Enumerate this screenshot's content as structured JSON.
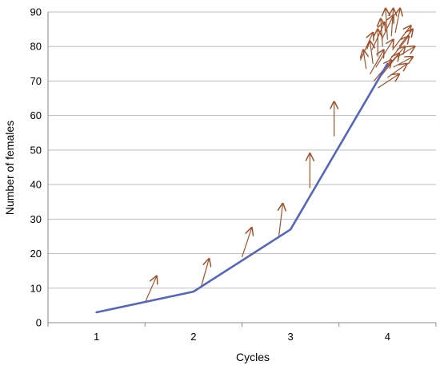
{
  "chart_data": {
    "type": "line",
    "title": "",
    "xlabel": "Cycles",
    "ylabel": "Number of females",
    "categories": [
      "1",
      "2",
      "3",
      "4"
    ],
    "xlim": [
      0.5,
      4.5
    ],
    "ylim": [
      0,
      90
    ],
    "yticks": [
      0,
      10,
      20,
      30,
      40,
      50,
      60,
      70,
      80,
      90
    ],
    "grid": "horizontal",
    "series": [
      {
        "x": [
          1,
          2,
          3,
          4
        ],
        "values": [
          3,
          9,
          27,
          75
        ],
        "color": "#5566bb"
      }
    ],
    "arrows": [
      {
        "from": [
          1.5,
          5.8
        ],
        "to": [
          1.62,
          13.5
        ]
      },
      {
        "from": [
          2.08,
          10.5
        ],
        "to": [
          2.16,
          18.5
        ]
      },
      {
        "from": [
          2.5,
          19
        ],
        "to": [
          2.6,
          27.5
        ]
      },
      {
        "from": [
          2.88,
          25
        ],
        "to": [
          2.92,
          34.5
        ]
      },
      {
        "from": [
          3.2,
          39
        ],
        "to": [
          3.2,
          49
        ]
      },
      {
        "from": [
          3.45,
          54
        ],
        "to": [
          3.45,
          64
        ]
      },
      {
        "from": [
          3.78,
          73.5
        ],
        "to": [
          3.75,
          79
        ]
      },
      {
        "from": [
          3.85,
          75
        ],
        "to": [
          3.82,
          81.5
        ]
      },
      {
        "from": [
          3.9,
          77
        ],
        "to": [
          3.9,
          85
        ]
      },
      {
        "from": [
          3.95,
          80
        ],
        "to": [
          3.93,
          88
        ]
      },
      {
        "from": [
          4.0,
          82
        ],
        "to": [
          3.98,
          91
        ]
      },
      {
        "from": [
          4.04,
          83
        ],
        "to": [
          4.06,
          91
        ]
      },
      {
        "from": [
          4.08,
          84
        ],
        "to": [
          4.13,
          91
        ]
      },
      {
        "from": [
          3.82,
          72
        ],
        "to": [
          3.96,
          79
        ]
      },
      {
        "from": [
          3.88,
          74
        ],
        "to": [
          4.06,
          82
        ]
      },
      {
        "from": [
          3.92,
          71
        ],
        "to": [
          4.12,
          78
        ]
      },
      {
        "from": [
          3.96,
          73
        ],
        "to": [
          4.18,
          80
        ]
      },
      {
        "from": [
          4.02,
          76
        ],
        "to": [
          4.22,
          83
        ]
      },
      {
        "from": [
          4.05,
          79
        ],
        "to": [
          4.24,
          86
        ]
      },
      {
        "from": [
          3.86,
          70
        ],
        "to": [
          4.04,
          76
        ]
      },
      {
        "from": [
          3.9,
          68
        ],
        "to": [
          4.12,
          72
        ]
      },
      {
        "from": [
          4.0,
          71
        ],
        "to": [
          4.2,
          75
        ]
      },
      {
        "from": [
          4.06,
          74
        ],
        "to": [
          4.26,
          77
        ]
      },
      {
        "from": [
          4.1,
          77
        ],
        "to": [
          4.28,
          80
        ]
      },
      {
        "from": [
          3.72,
          76
        ],
        "to": [
          3.85,
          84
        ]
      },
      {
        "from": [
          3.84,
          79
        ],
        "to": [
          3.97,
          87
        ]
      },
      {
        "from": [
          3.94,
          82
        ],
        "to": [
          4.06,
          89
        ]
      },
      {
        "from": [
          4.12,
          80
        ],
        "to": [
          4.26,
          85
        ]
      }
    ]
  }
}
